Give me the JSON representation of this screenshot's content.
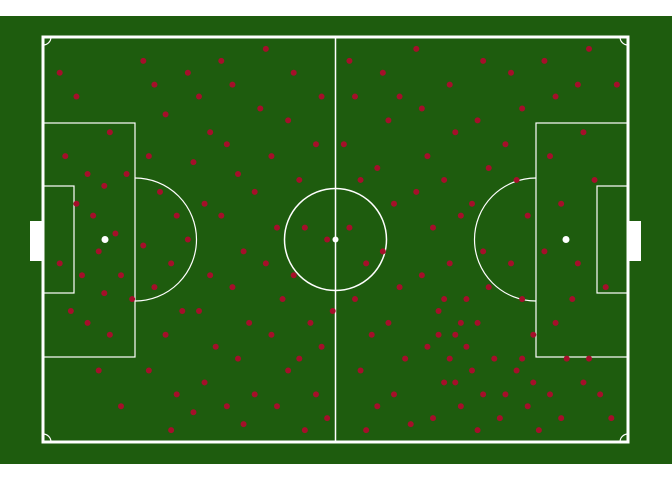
{
  "chart_data": {
    "type": "scatter",
    "color": "#a50f2a",
    "xlim": [
      0,
      105
    ],
    "ylim": [
      0,
      68
    ],
    "x": [
      4,
      8,
      6,
      9,
      3,
      7,
      10,
      5,
      8,
      11,
      12,
      6,
      3,
      11,
      13,
      14,
      12,
      15,
      16,
      10,
      14,
      18,
      20,
      22,
      19,
      21,
      24,
      18,
      23,
      20,
      25,
      22,
      19,
      24,
      27,
      26,
      28,
      30,
      27,
      29,
      26,
      30,
      28,
      31,
      29,
      33,
      23,
      32,
      34,
      33,
      35,
      32,
      36,
      34,
      37,
      35,
      38,
      36,
      40,
      39,
      41,
      38,
      42,
      40,
      43,
      41,
      44,
      42,
      45,
      44,
      46,
      47,
      45,
      48,
      46,
      49,
      47,
      50,
      49,
      51,
      52,
      50,
      51,
      55,
      56,
      54,
      57,
      55,
      58,
      56,
      59,
      57,
      60,
      58,
      61,
      62,
      60,
      63,
      61,
      64,
      62,
      65,
      63,
      66,
      64,
      67,
      68,
      69,
      67,
      70,
      68,
      71,
      69,
      72,
      70,
      73,
      74,
      72,
      75,
      73,
      76,
      74,
      77,
      75,
      78,
      79,
      78,
      80,
      77,
      79,
      80,
      78,
      81,
      79,
      82,
      71,
      73,
      75,
      76,
      74,
      72,
      84,
      86,
      83,
      85,
      87,
      84,
      86,
      88,
      85,
      87,
      89,
      90,
      92,
      91,
      93,
      90,
      92,
      94,
      91,
      93,
      96,
      98,
      97,
      99,
      96,
      98,
      100,
      102,
      101,
      103,
      95,
      97,
      88,
      86,
      83
    ],
    "values": [
      48,
      45,
      40,
      38,
      30,
      28,
      32,
      22,
      20,
      25,
      18,
      58,
      62,
      43,
      35,
      28,
      52,
      45,
      24,
      12,
      6,
      64,
      60,
      55,
      48,
      42,
      38,
      33,
      30,
      26,
      22,
      18,
      12,
      8,
      5,
      62,
      58,
      52,
      47,
      40,
      34,
      28,
      22,
      16,
      10,
      6,
      2,
      64,
      60,
      50,
      45,
      38,
      32,
      26,
      20,
      14,
      8,
      3,
      66,
      56,
      48,
      42,
      36,
      30,
      24,
      18,
      12,
      6,
      62,
      54,
      44,
      36,
      28,
      20,
      14,
      8,
      2,
      58,
      50,
      34,
      22,
      16,
      4,
      64,
      58,
      50,
      44,
      36,
      30,
      24,
      18,
      12,
      6,
      2,
      62,
      54,
      46,
      40,
      32,
      26,
      20,
      14,
      8,
      3,
      58,
      66,
      56,
      48,
      42,
      36,
      28,
      22,
      16,
      10,
      4,
      60,
      52,
      44,
      38,
      30,
      24,
      18,
      12,
      6,
      2,
      64,
      54,
      46,
      40,
      32,
      26,
      20,
      14,
      8,
      4,
      18,
      14,
      20,
      16,
      10,
      24,
      62,
      56,
      50,
      44,
      38,
      30,
      24,
      18,
      12,
      6,
      2,
      64,
      58,
      48,
      40,
      32,
      20,
      14,
      8,
      4,
      60,
      66,
      52,
      44,
      30,
      14,
      8,
      4,
      26,
      60,
      24,
      10,
      10,
      14,
      8
    ]
  }
}
